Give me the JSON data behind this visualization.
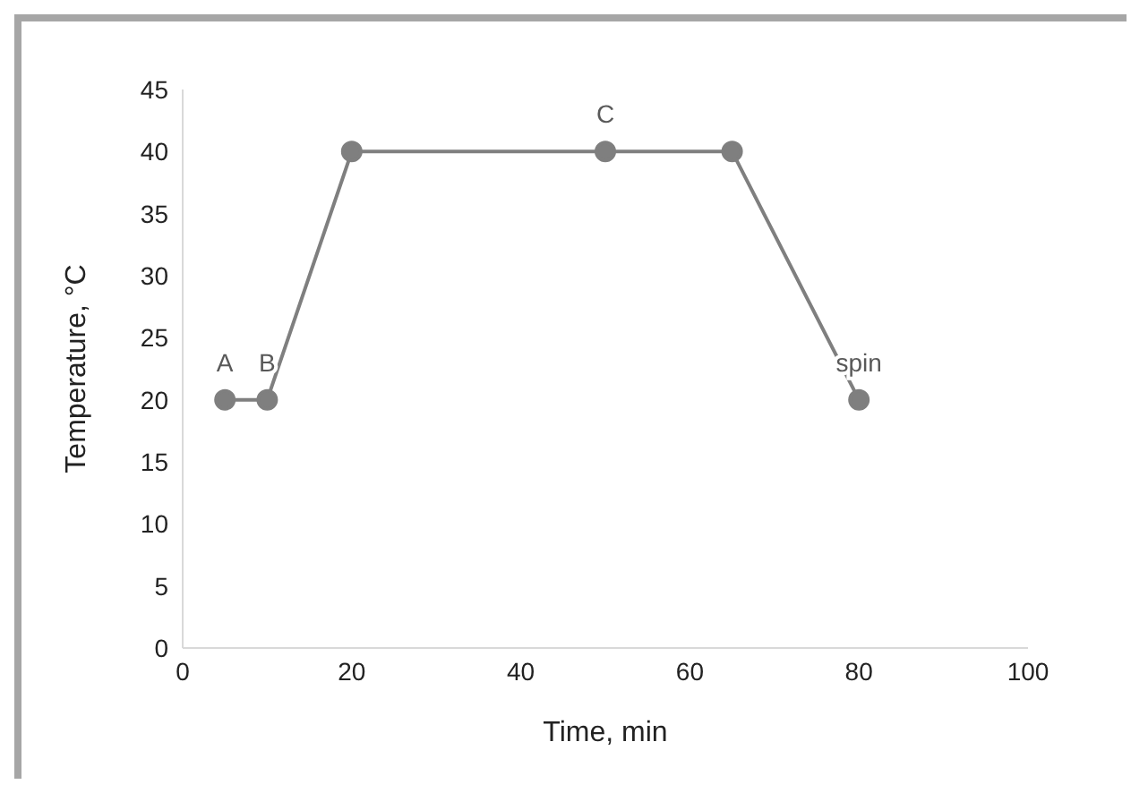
{
  "chart_data": {
    "type": "line",
    "xlabel": "Time, min",
    "ylabel": "Temperature, °C",
    "x": [
      5,
      10,
      20,
      50,
      65,
      80
    ],
    "series": [
      {
        "color": "#7f7f7f",
        "values": [
          20,
          20,
          40,
          40,
          40,
          20
        ]
      }
    ],
    "xlim": [
      0,
      100
    ],
    "xticks": [
      0,
      20,
      40,
      60,
      80,
      100
    ],
    "ylim": [
      0,
      45
    ],
    "yticks": [
      0,
      5,
      10,
      15,
      20,
      25,
      30,
      35,
      40,
      45
    ],
    "grid": false,
    "legend": false,
    "marker": "circle",
    "line_style": "solid",
    "annotations": [
      {
        "text": "A",
        "x": 5,
        "y": 20
      },
      {
        "text": "B",
        "x": 10,
        "y": 20
      },
      {
        "text": "C",
        "x": 50,
        "y": 40
      },
      {
        "text": "spin",
        "x": 80,
        "y": 20
      }
    ]
  }
}
